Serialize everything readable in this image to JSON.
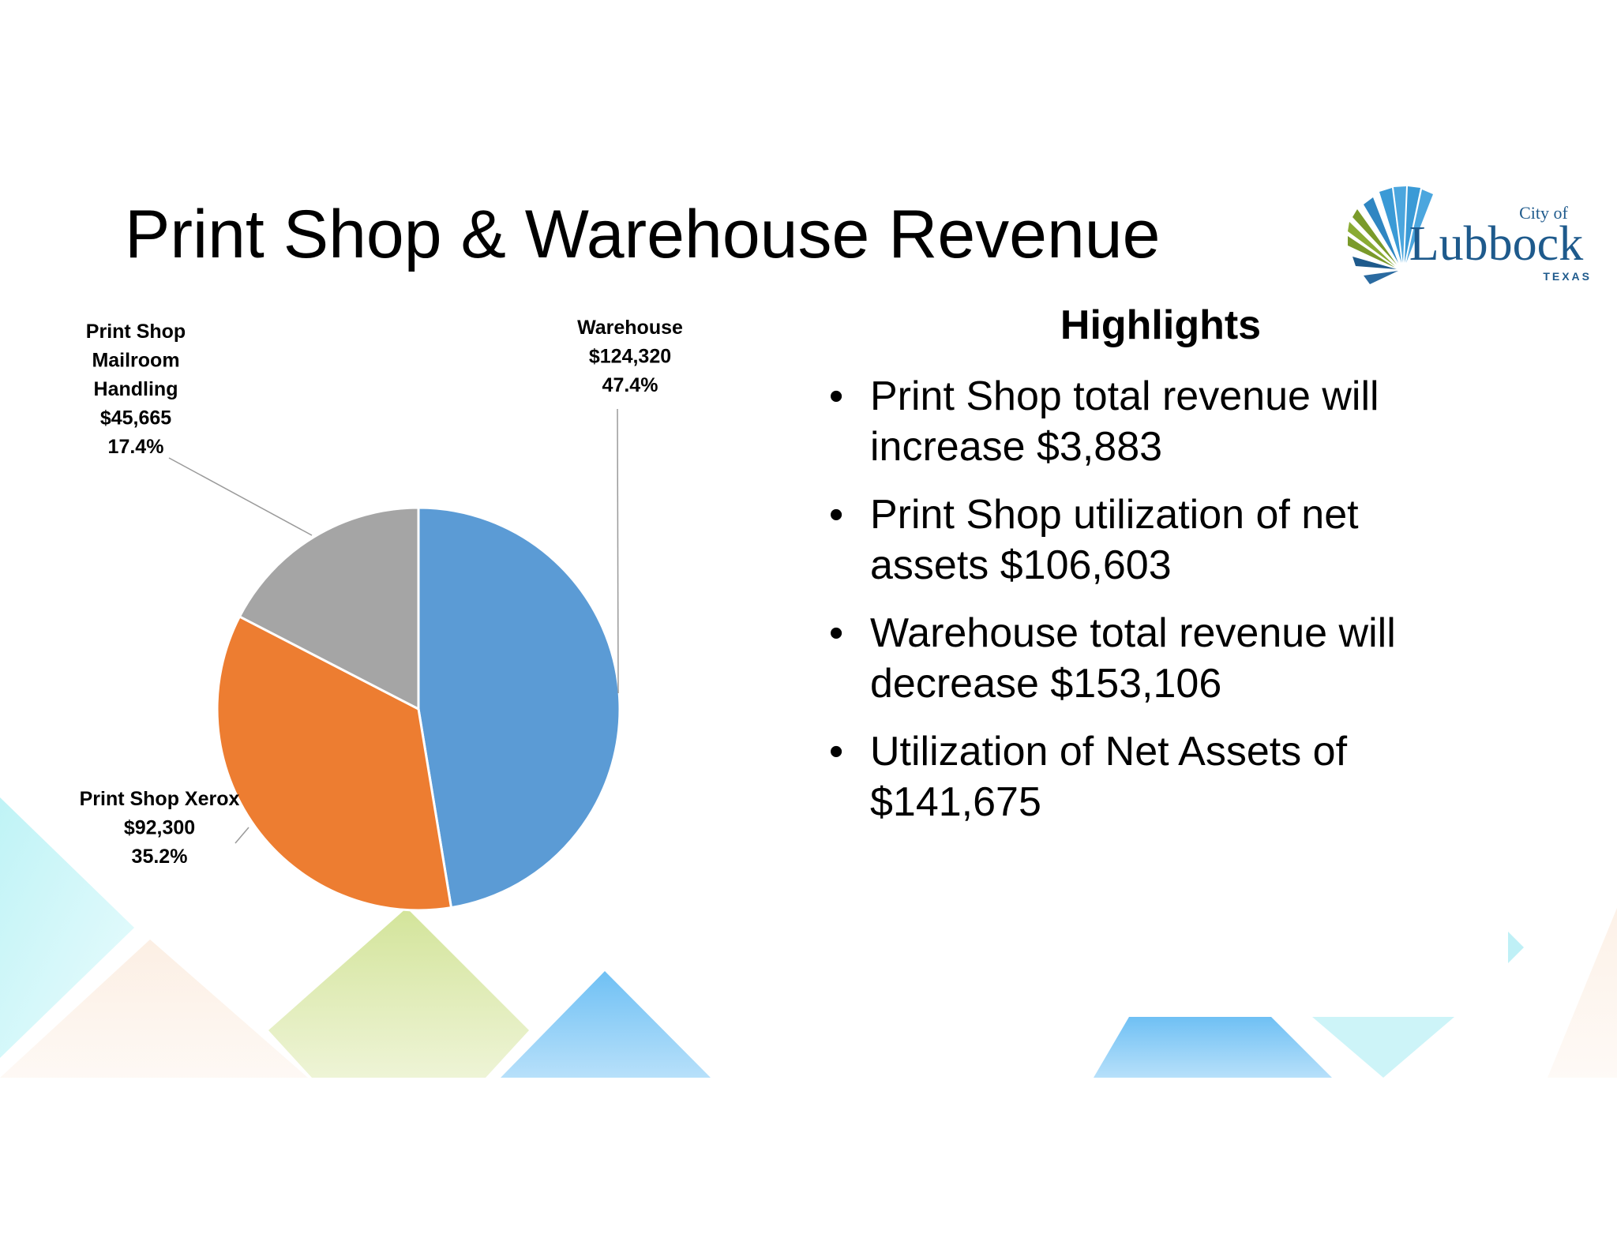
{
  "slide": {
    "title": "Print Shop & Warehouse Revenue"
  },
  "logo": {
    "city_of": "City of",
    "name": "Lubbock",
    "state": "TEXAS",
    "colors": {
      "blue": "#2a7db8",
      "green": "#7a9a2a",
      "navy": "#1e5a8c"
    }
  },
  "chart_data": {
    "type": "pie",
    "title": "",
    "slices": [
      {
        "name": "Warehouse",
        "label_lines": [
          "Warehouse"
        ],
        "value": 124320,
        "value_label": "$124,320",
        "percent": 47.4,
        "percent_label": "47.4%",
        "color": "#5b9bd5"
      },
      {
        "name": "Print Shop Xerox",
        "label_lines": [
          "Print Shop Xerox"
        ],
        "value": 92300,
        "value_label": "$92,300",
        "percent": 35.2,
        "percent_label": "35.2%",
        "color": "#ed7d31"
      },
      {
        "name": "Print Shop Mailroom Handling",
        "label_lines": [
          "Print Shop",
          "Mailroom",
          "Handling"
        ],
        "value": 45665,
        "value_label": "$45,665",
        "percent": 17.4,
        "percent_label": "17.4%",
        "color": "#a5a5a5"
      }
    ],
    "start": "12 o'clock",
    "direction": "clockwise",
    "legend": "none",
    "data_labels": "outside with leader lines"
  },
  "highlights": {
    "heading": "Highlights",
    "bullet_char": "•",
    "items": [
      {
        "lines": [
          "Print Shop total revenue will",
          "increase $3,883"
        ]
      },
      {
        "lines": [
          "Print Shop utilization of net",
          "assets $106,603"
        ]
      },
      {
        "lines": [
          "Warehouse total revenue will",
          "decrease $153,106"
        ]
      },
      {
        "lines": [
          "Utilization of Net Assets of",
          "$141,675"
        ]
      }
    ]
  }
}
